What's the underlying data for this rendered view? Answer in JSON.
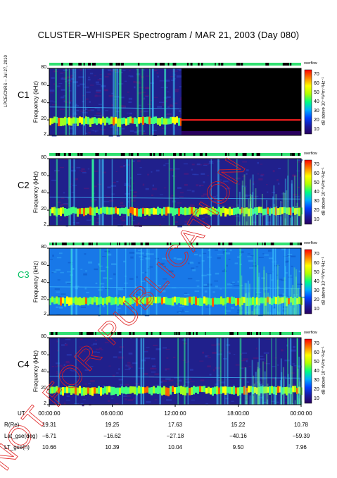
{
  "chart_data": {
    "type": "heatmap",
    "title": "CLUSTER–WHISPER Spectrogram / MAR 21, 2003 (Day 080)",
    "side_note": "LPCE/CNRS – Jul 27, 2010",
    "watermark": "NOT FOR PUBLICATION",
    "ylabel": "Frequency (kHz)",
    "ylim": [
      2,
      80
    ],
    "y_ticks": [
      "80",
      "60",
      "40",
      "20",
      "2"
    ],
    "xlim_hours": [
      0,
      24
    ],
    "colorbar": {
      "title": "overflow",
      "unit": "dB above 10⁻⁸V²m⁻²Hz⁻¹",
      "ticks": [
        "70",
        "60",
        "50",
        "40",
        "30",
        "20",
        "10"
      ],
      "range": [
        5,
        75
      ],
      "colors": [
        "#2a0060",
        "#1a1aa0",
        "#0040ff",
        "#00b0ff",
        "#00ff80",
        "#b0ff00",
        "#ffff00",
        "#ff8000",
        "#ff0000"
      ]
    },
    "panels": [
      {
        "name": "C1",
        "label_color": "#000000",
        "data_end_hours": 12.6,
        "band_start_khz": 14,
        "band_end_khz": 24,
        "flag": "no-data-after"
      },
      {
        "name": "C2",
        "label_color": "#000000",
        "data_end_hours": 24,
        "band_start_khz": 14,
        "band_end_khz": 24,
        "flag": ""
      },
      {
        "name": "C3",
        "label_color": "#00c060",
        "data_end_hours": 24,
        "band_start_khz": 14,
        "band_end_khz": 24,
        "flag": ""
      },
      {
        "name": "C4",
        "label_color": "#000000",
        "data_end_hours": 24,
        "band_start_khz": 14,
        "band_end_khz": 24,
        "flag": ""
      }
    ],
    "ephemeris": {
      "labels": [
        "UT",
        "R(Re)",
        "Lat_gse(deg)",
        "LT_gse(h)"
      ],
      "columns": [
        {
          "UT": "00:00:00",
          "R": "19.31",
          "Lat": "−6.71",
          "LT": "10.66"
        },
        {
          "UT": "06:00:00",
          "R": "19.25",
          "Lat": "−16.62",
          "LT": "10.39"
        },
        {
          "UT": "12:00:00",
          "R": "17.63",
          "Lat": "−27.18",
          "LT": "10.04"
        },
        {
          "UT": "18:00:00",
          "R": "15.22",
          "Lat": "−40.16",
          "LT": "9.50"
        },
        {
          "UT": "00:00:00",
          "R": "10.78",
          "Lat": "−59.39",
          "LT": "7.96"
        }
      ]
    }
  }
}
